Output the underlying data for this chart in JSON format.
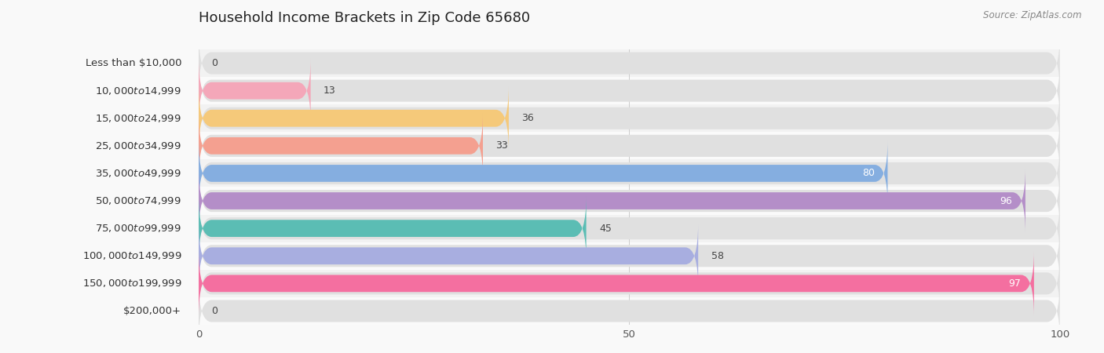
{
  "title": "Household Income Brackets in Zip Code 65680",
  "source": "Source: ZipAtlas.com",
  "categories": [
    "Less than $10,000",
    "$10,000 to $14,999",
    "$15,000 to $24,999",
    "$25,000 to $34,999",
    "$35,000 to $49,999",
    "$50,000 to $74,999",
    "$75,000 to $99,999",
    "$100,000 to $149,999",
    "$150,000 to $199,999",
    "$200,000+"
  ],
  "values": [
    0,
    13,
    36,
    33,
    80,
    96,
    45,
    58,
    97,
    0
  ],
  "bar_colors": [
    "#a9a9d4",
    "#f4a7b9",
    "#f5c97a",
    "#f4a090",
    "#85aee0",
    "#b48ec8",
    "#5bbdb4",
    "#a8aee0",
    "#f46fa0",
    "#f5d9a8"
  ],
  "label_colors": [
    "#555555",
    "#555555",
    "#555555",
    "#555555",
    "#ffffff",
    "#ffffff",
    "#555555",
    "#555555",
    "#ffffff",
    "#555555"
  ],
  "value_inside": [
    false,
    false,
    false,
    false,
    true,
    true,
    false,
    false,
    true,
    false
  ],
  "xlim": [
    0,
    100
  ],
  "background_color": "#f9f9f9",
  "bar_bg_color": "#e8e8e8",
  "row_bg_colors": [
    "#f0f0f0",
    "#fafafa"
  ],
  "title_fontsize": 13,
  "label_fontsize": 9.5,
  "value_fontsize": 9
}
